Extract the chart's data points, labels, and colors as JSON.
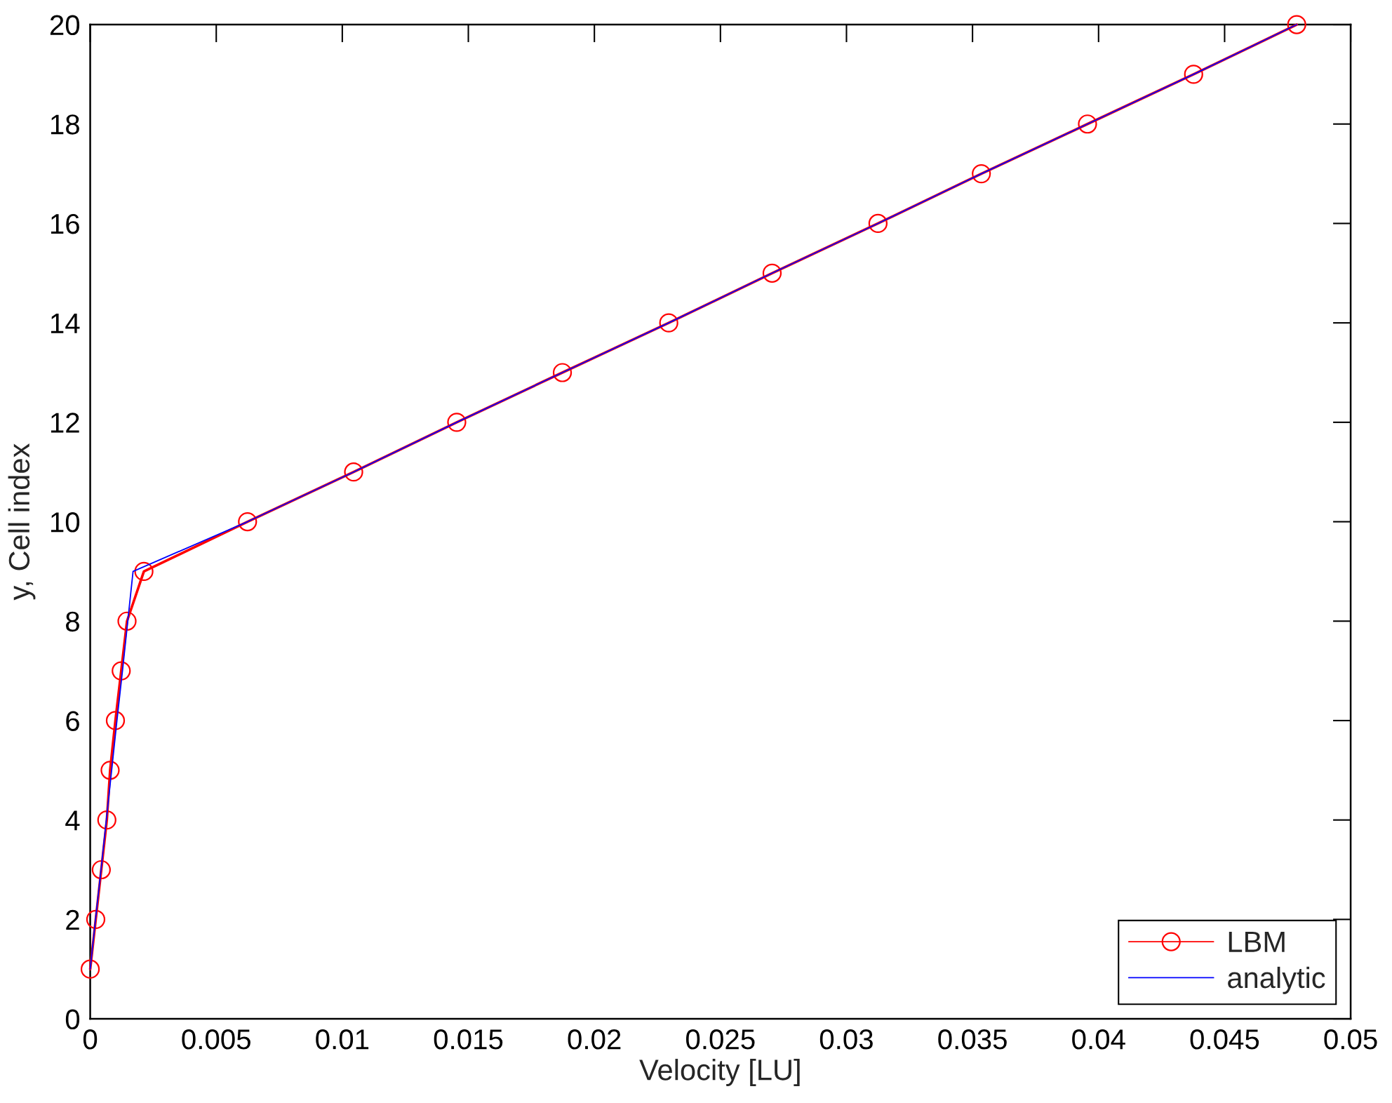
{
  "chart_data": {
    "type": "line",
    "xlabel": "Velocity [LU]",
    "ylabel": "y, Cell index",
    "xlim": [
      0,
      0.05
    ],
    "ylim": [
      0,
      20
    ],
    "xticks": [
      0,
      0.005,
      0.01,
      0.015,
      0.02,
      0.025,
      0.03,
      0.035,
      0.04,
      0.045,
      0.05
    ],
    "yticks": [
      0,
      2,
      4,
      6,
      8,
      10,
      12,
      14,
      16,
      18,
      20
    ],
    "legend": "bottom right",
    "series": [
      {
        "name": "LBM",
        "color": "#ff0000",
        "marker": "circle",
        "x": [
          0,
          0.00022,
          0.00044,
          0.00066,
          0.00079,
          0.001,
          0.00123,
          0.00146,
          0.00213,
          0.00624,
          0.01045,
          0.01454,
          0.01873,
          0.02295,
          0.02705,
          0.03125,
          0.03535,
          0.03956,
          0.04377,
          0.04786
        ],
        "values": [
          1,
          2,
          3,
          4,
          5,
          6,
          7,
          8,
          9,
          10,
          11,
          12,
          13,
          14,
          15,
          16,
          17,
          18,
          19,
          20
        ]
      },
      {
        "name": "analytic",
        "color": "#0000ff",
        "marker": "none",
        "x": [
          0,
          0.00021,
          0.00043,
          0.00064,
          0.00085,
          0.00106,
          0.00128,
          0.00149,
          0.0017,
          0.00624,
          0.01045,
          0.01454,
          0.01873,
          0.02295,
          0.02705,
          0.03125,
          0.03535,
          0.03956,
          0.04377,
          0.04786
        ],
        "values": [
          1,
          2,
          3,
          4,
          5,
          6,
          7,
          8,
          9,
          10,
          11,
          12,
          13,
          14,
          15,
          16,
          17,
          18,
          19,
          20
        ]
      }
    ]
  }
}
